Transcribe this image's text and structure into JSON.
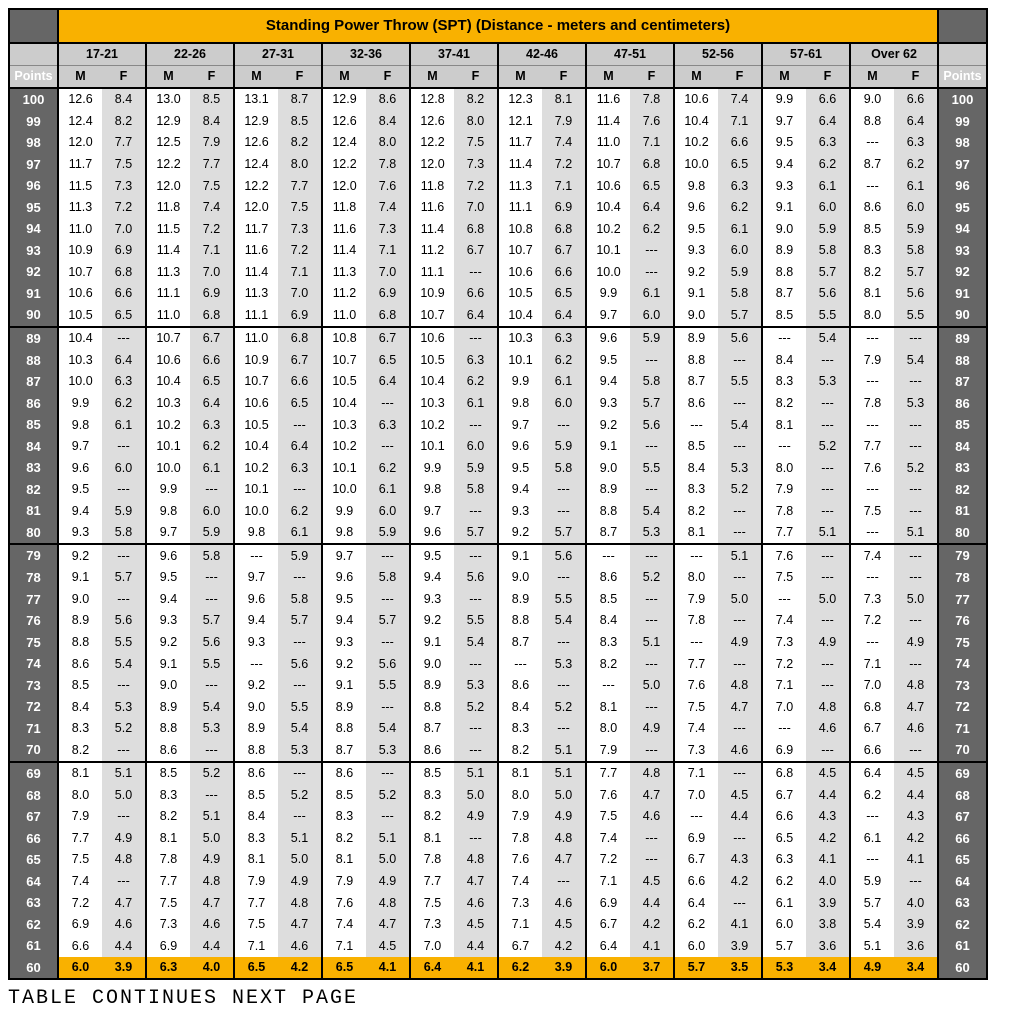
{
  "title": "Standing Power Throw (SPT) (Distance - meters and centimeters)",
  "points_label": "Points",
  "mf_labels": [
    "M",
    "F"
  ],
  "age_groups": [
    "17-21",
    "22-26",
    "27-31",
    "32-36",
    "37-41",
    "42-46",
    "47-51",
    "52-56",
    "57-61",
    "Over 62"
  ],
  "footer": "TABLE CONTINUES NEXT PAGE",
  "colors": {
    "header_bg": "#f9b100",
    "subheader_bg": "#cccccc",
    "points_bg": "#666666",
    "points_fg": "#ffffff",
    "m_bg": "#ffffff",
    "f_bg": "#dddddd",
    "gold_bg": "#f9b100",
    "border": "#000000"
  },
  "layout": {
    "col_points_w": 48,
    "col_mf_w": 44,
    "section_breaks_after": [
      90,
      80,
      70,
      60
    ],
    "gold_rows": [
      60
    ]
  },
  "rows": [
    {
      "p": 100,
      "v": [
        "12.6",
        "8.4",
        "13.0",
        "8.5",
        "13.1",
        "8.7",
        "12.9",
        "8.6",
        "12.8",
        "8.2",
        "12.3",
        "8.1",
        "11.6",
        "7.8",
        "10.6",
        "7.4",
        "9.9",
        "6.6",
        "9.0",
        "6.6"
      ]
    },
    {
      "p": 99,
      "v": [
        "12.4",
        "8.2",
        "12.9",
        "8.4",
        "12.9",
        "8.5",
        "12.6",
        "8.4",
        "12.6",
        "8.0",
        "12.1",
        "7.9",
        "11.4",
        "7.6",
        "10.4",
        "7.1",
        "9.7",
        "6.4",
        "8.8",
        "6.4"
      ]
    },
    {
      "p": 98,
      "v": [
        "12.0",
        "7.7",
        "12.5",
        "7.9",
        "12.6",
        "8.2",
        "12.4",
        "8.0",
        "12.2",
        "7.5",
        "11.7",
        "7.4",
        "11.0",
        "7.1",
        "10.2",
        "6.6",
        "9.5",
        "6.3",
        "---",
        "6.3"
      ]
    },
    {
      "p": 97,
      "v": [
        "11.7",
        "7.5",
        "12.2",
        "7.7",
        "12.4",
        "8.0",
        "12.2",
        "7.8",
        "12.0",
        "7.3",
        "11.4",
        "7.2",
        "10.7",
        "6.8",
        "10.0",
        "6.5",
        "9.4",
        "6.2",
        "8.7",
        "6.2"
      ]
    },
    {
      "p": 96,
      "v": [
        "11.5",
        "7.3",
        "12.0",
        "7.5",
        "12.2",
        "7.7",
        "12.0",
        "7.6",
        "11.8",
        "7.2",
        "11.3",
        "7.1",
        "10.6",
        "6.5",
        "9.8",
        "6.3",
        "9.3",
        "6.1",
        "---",
        "6.1"
      ]
    },
    {
      "p": 95,
      "v": [
        "11.3",
        "7.2",
        "11.8",
        "7.4",
        "12.0",
        "7.5",
        "11.8",
        "7.4",
        "11.6",
        "7.0",
        "11.1",
        "6.9",
        "10.4",
        "6.4",
        "9.6",
        "6.2",
        "9.1",
        "6.0",
        "8.6",
        "6.0"
      ]
    },
    {
      "p": 94,
      "v": [
        "11.0",
        "7.0",
        "11.5",
        "7.2",
        "11.7",
        "7.3",
        "11.6",
        "7.3",
        "11.4",
        "6.8",
        "10.8",
        "6.8",
        "10.2",
        "6.2",
        "9.5",
        "6.1",
        "9.0",
        "5.9",
        "8.5",
        "5.9"
      ]
    },
    {
      "p": 93,
      "v": [
        "10.9",
        "6.9",
        "11.4",
        "7.1",
        "11.6",
        "7.2",
        "11.4",
        "7.1",
        "11.2",
        "6.7",
        "10.7",
        "6.7",
        "10.1",
        "---",
        "9.3",
        "6.0",
        "8.9",
        "5.8",
        "8.3",
        "5.8"
      ]
    },
    {
      "p": 92,
      "v": [
        "10.7",
        "6.8",
        "11.3",
        "7.0",
        "11.4",
        "7.1",
        "11.3",
        "7.0",
        "11.1",
        "---",
        "10.6",
        "6.6",
        "10.0",
        "---",
        "9.2",
        "5.9",
        "8.8",
        "5.7",
        "8.2",
        "5.7"
      ]
    },
    {
      "p": 91,
      "v": [
        "10.6",
        "6.6",
        "11.1",
        "6.9",
        "11.3",
        "7.0",
        "11.2",
        "6.9",
        "10.9",
        "6.6",
        "10.5",
        "6.5",
        "9.9",
        "6.1",
        "9.1",
        "5.8",
        "8.7",
        "5.6",
        "8.1",
        "5.6"
      ]
    },
    {
      "p": 90,
      "v": [
        "10.5",
        "6.5",
        "11.0",
        "6.8",
        "11.1",
        "6.9",
        "11.0",
        "6.8",
        "10.7",
        "6.4",
        "10.4",
        "6.4",
        "9.7",
        "6.0",
        "9.0",
        "5.7",
        "8.5",
        "5.5",
        "8.0",
        "5.5"
      ]
    },
    {
      "p": 89,
      "v": [
        "10.4",
        "---",
        "10.7",
        "6.7",
        "11.0",
        "6.8",
        "10.8",
        "6.7",
        "10.6",
        "---",
        "10.3",
        "6.3",
        "9.6",
        "5.9",
        "8.9",
        "5.6",
        "---",
        "5.4",
        "---",
        "---"
      ]
    },
    {
      "p": 88,
      "v": [
        "10.3",
        "6.4",
        "10.6",
        "6.6",
        "10.9",
        "6.7",
        "10.7",
        "6.5",
        "10.5",
        "6.3",
        "10.1",
        "6.2",
        "9.5",
        "---",
        "8.8",
        "---",
        "8.4",
        "---",
        "7.9",
        "5.4"
      ]
    },
    {
      "p": 87,
      "v": [
        "10.0",
        "6.3",
        "10.4",
        "6.5",
        "10.7",
        "6.6",
        "10.5",
        "6.4",
        "10.4",
        "6.2",
        "9.9",
        "6.1",
        "9.4",
        "5.8",
        "8.7",
        "5.5",
        "8.3",
        "5.3",
        "---",
        "---"
      ]
    },
    {
      "p": 86,
      "v": [
        "9.9",
        "6.2",
        "10.3",
        "6.4",
        "10.6",
        "6.5",
        "10.4",
        "---",
        "10.3",
        "6.1",
        "9.8",
        "6.0",
        "9.3",
        "5.7",
        "8.6",
        "---",
        "8.2",
        "---",
        "7.8",
        "5.3"
      ]
    },
    {
      "p": 85,
      "v": [
        "9.8",
        "6.1",
        "10.2",
        "6.3",
        "10.5",
        "---",
        "10.3",
        "6.3",
        "10.2",
        "---",
        "9.7",
        "---",
        "9.2",
        "5.6",
        "---",
        "5.4",
        "8.1",
        "---",
        "---",
        "---"
      ]
    },
    {
      "p": 84,
      "v": [
        "9.7",
        "---",
        "10.1",
        "6.2",
        "10.4",
        "6.4",
        "10.2",
        "---",
        "10.1",
        "6.0",
        "9.6",
        "5.9",
        "9.1",
        "---",
        "8.5",
        "---",
        "---",
        "5.2",
        "7.7",
        "---"
      ]
    },
    {
      "p": 83,
      "v": [
        "9.6",
        "6.0",
        "10.0",
        "6.1",
        "10.2",
        "6.3",
        "10.1",
        "6.2",
        "9.9",
        "5.9",
        "9.5",
        "5.8",
        "9.0",
        "5.5",
        "8.4",
        "5.3",
        "8.0",
        "---",
        "7.6",
        "5.2"
      ]
    },
    {
      "p": 82,
      "v": [
        "9.5",
        "---",
        "9.9",
        "---",
        "10.1",
        "---",
        "10.0",
        "6.1",
        "9.8",
        "5.8",
        "9.4",
        "---",
        "8.9",
        "---",
        "8.3",
        "5.2",
        "7.9",
        "---",
        "---",
        "---"
      ]
    },
    {
      "p": 81,
      "v": [
        "9.4",
        "5.9",
        "9.8",
        "6.0",
        "10.0",
        "6.2",
        "9.9",
        "6.0",
        "9.7",
        "---",
        "9.3",
        "---",
        "8.8",
        "5.4",
        "8.2",
        "---",
        "7.8",
        "---",
        "7.5",
        "---"
      ]
    },
    {
      "p": 80,
      "v": [
        "9.3",
        "5.8",
        "9.7",
        "5.9",
        "9.8",
        "6.1",
        "9.8",
        "5.9",
        "9.6",
        "5.7",
        "9.2",
        "5.7",
        "8.7",
        "5.3",
        "8.1",
        "---",
        "7.7",
        "5.1",
        "---",
        "5.1"
      ]
    },
    {
      "p": 79,
      "v": [
        "9.2",
        "---",
        "9.6",
        "5.8",
        "---",
        "5.9",
        "9.7",
        "---",
        "9.5",
        "---",
        "9.1",
        "5.6",
        "---",
        "---",
        "---",
        "5.1",
        "7.6",
        "---",
        "7.4",
        "---"
      ]
    },
    {
      "p": 78,
      "v": [
        "9.1",
        "5.7",
        "9.5",
        "---",
        "9.7",
        "---",
        "9.6",
        "5.8",
        "9.4",
        "5.6",
        "9.0",
        "---",
        "8.6",
        "5.2",
        "8.0",
        "---",
        "7.5",
        "---",
        "---",
        "---"
      ]
    },
    {
      "p": 77,
      "v": [
        "9.0",
        "---",
        "9.4",
        "---",
        "9.6",
        "5.8",
        "9.5",
        "---",
        "9.3",
        "---",
        "8.9",
        "5.5",
        "8.5",
        "---",
        "7.9",
        "5.0",
        "---",
        "5.0",
        "7.3",
        "5.0"
      ]
    },
    {
      "p": 76,
      "v": [
        "8.9",
        "5.6",
        "9.3",
        "5.7",
        "9.4",
        "5.7",
        "9.4",
        "5.7",
        "9.2",
        "5.5",
        "8.8",
        "5.4",
        "8.4",
        "---",
        "7.8",
        "---",
        "7.4",
        "---",
        "7.2",
        "---"
      ]
    },
    {
      "p": 75,
      "v": [
        "8.8",
        "5.5",
        "9.2",
        "5.6",
        "9.3",
        "---",
        "9.3",
        "---",
        "9.1",
        "5.4",
        "8.7",
        "---",
        "8.3",
        "5.1",
        "---",
        "4.9",
        "7.3",
        "4.9",
        "---",
        "4.9"
      ]
    },
    {
      "p": 74,
      "v": [
        "8.6",
        "5.4",
        "9.1",
        "5.5",
        "---",
        "5.6",
        "9.2",
        "5.6",
        "9.0",
        "---",
        "---",
        "5.3",
        "8.2",
        "---",
        "7.7",
        "---",
        "7.2",
        "---",
        "7.1",
        "---"
      ]
    },
    {
      "p": 73,
      "v": [
        "8.5",
        "---",
        "9.0",
        "---",
        "9.2",
        "---",
        "9.1",
        "5.5",
        "8.9",
        "5.3",
        "8.6",
        "---",
        "---",
        "5.0",
        "7.6",
        "4.8",
        "7.1",
        "---",
        "7.0",
        "4.8"
      ]
    },
    {
      "p": 72,
      "v": [
        "8.4",
        "5.3",
        "8.9",
        "5.4",
        "9.0",
        "5.5",
        "8.9",
        "---",
        "8.8",
        "5.2",
        "8.4",
        "5.2",
        "8.1",
        "---",
        "7.5",
        "4.7",
        "7.0",
        "4.8",
        "6.8",
        "4.7"
      ]
    },
    {
      "p": 71,
      "v": [
        "8.3",
        "5.2",
        "8.8",
        "5.3",
        "8.9",
        "5.4",
        "8.8",
        "5.4",
        "8.7",
        "---",
        "8.3",
        "---",
        "8.0",
        "4.9",
        "7.4",
        "---",
        "---",
        "4.6",
        "6.7",
        "4.6"
      ]
    },
    {
      "p": 70,
      "v": [
        "8.2",
        "---",
        "8.6",
        "---",
        "8.8",
        "5.3",
        "8.7",
        "5.3",
        "8.6",
        "---",
        "8.2",
        "5.1",
        "7.9",
        "---",
        "7.3",
        "4.6",
        "6.9",
        "---",
        "6.6",
        "---"
      ]
    },
    {
      "p": 69,
      "v": [
        "8.1",
        "5.1",
        "8.5",
        "5.2",
        "8.6",
        "---",
        "8.6",
        "---",
        "8.5",
        "5.1",
        "8.1",
        "5.1",
        "7.7",
        "4.8",
        "7.1",
        "---",
        "6.8",
        "4.5",
        "6.4",
        "4.5"
      ]
    },
    {
      "p": 68,
      "v": [
        "8.0",
        "5.0",
        "8.3",
        "---",
        "8.5",
        "5.2",
        "8.5",
        "5.2",
        "8.3",
        "5.0",
        "8.0",
        "5.0",
        "7.6",
        "4.7",
        "7.0",
        "4.5",
        "6.7",
        "4.4",
        "6.2",
        "4.4"
      ]
    },
    {
      "p": 67,
      "v": [
        "7.9",
        "---",
        "8.2",
        "5.1",
        "8.4",
        "---",
        "8.3",
        "---",
        "8.2",
        "4.9",
        "7.9",
        "4.9",
        "7.5",
        "4.6",
        "---",
        "4.4",
        "6.6",
        "4.3",
        "---",
        "4.3"
      ]
    },
    {
      "p": 66,
      "v": [
        "7.7",
        "4.9",
        "8.1",
        "5.0",
        "8.3",
        "5.1",
        "8.2",
        "5.1",
        "8.1",
        "---",
        "7.8",
        "4.8",
        "7.4",
        "---",
        "6.9",
        "---",
        "6.5",
        "4.2",
        "6.1",
        "4.2"
      ]
    },
    {
      "p": 65,
      "v": [
        "7.5",
        "4.8",
        "7.8",
        "4.9",
        "8.1",
        "5.0",
        "8.1",
        "5.0",
        "7.8",
        "4.8",
        "7.6",
        "4.7",
        "7.2",
        "---",
        "6.7",
        "4.3",
        "6.3",
        "4.1",
        "---",
        "4.1"
      ]
    },
    {
      "p": 64,
      "v": [
        "7.4",
        "---",
        "7.7",
        "4.8",
        "7.9",
        "4.9",
        "7.9",
        "4.9",
        "7.7",
        "4.7",
        "7.4",
        "---",
        "7.1",
        "4.5",
        "6.6",
        "4.2",
        "6.2",
        "4.0",
        "5.9",
        "---"
      ]
    },
    {
      "p": 63,
      "v": [
        "7.2",
        "4.7",
        "7.5",
        "4.7",
        "7.7",
        "4.8",
        "7.6",
        "4.8",
        "7.5",
        "4.6",
        "7.3",
        "4.6",
        "6.9",
        "4.4",
        "6.4",
        "---",
        "6.1",
        "3.9",
        "5.7",
        "4.0"
      ]
    },
    {
      "p": 62,
      "v": [
        "6.9",
        "4.6",
        "7.3",
        "4.6",
        "7.5",
        "4.7",
        "7.4",
        "4.7",
        "7.3",
        "4.5",
        "7.1",
        "4.5",
        "6.7",
        "4.2",
        "6.2",
        "4.1",
        "6.0",
        "3.8",
        "5.4",
        "3.9"
      ]
    },
    {
      "p": 61,
      "v": [
        "6.6",
        "4.4",
        "6.9",
        "4.4",
        "7.1",
        "4.6",
        "7.1",
        "4.5",
        "7.0",
        "4.4",
        "6.7",
        "4.2",
        "6.4",
        "4.1",
        "6.0",
        "3.9",
        "5.7",
        "3.6",
        "5.1",
        "3.6"
      ]
    },
    {
      "p": 60,
      "v": [
        "6.0",
        "3.9",
        "6.3",
        "4.0",
        "6.5",
        "4.2",
        "6.5",
        "4.1",
        "6.4",
        "4.1",
        "6.2",
        "3.9",
        "6.0",
        "3.7",
        "5.7",
        "3.5",
        "5.3",
        "3.4",
        "4.9",
        "3.4"
      ]
    }
  ]
}
